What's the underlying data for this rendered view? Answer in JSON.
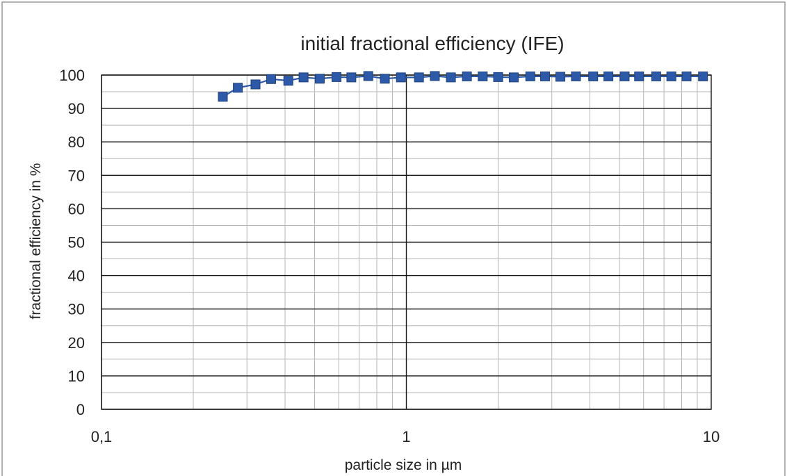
{
  "chart_data": {
    "type": "scatter",
    "title": "initial fractional efficiency (IFE)",
    "xlabel": "particle size in µm",
    "ylabel": "fractional efficiency in %",
    "x_scale": "log",
    "xlim": [
      0.1,
      10
    ],
    "ylim": [
      0,
      100
    ],
    "x_tick_labels": [
      "0,1",
      "1",
      "10"
    ],
    "y_tick_labels": [
      "0",
      "10",
      "20",
      "30",
      "40",
      "50",
      "60",
      "70",
      "80",
      "90",
      "100"
    ],
    "grid": true,
    "legend": "none",
    "series": [
      {
        "line": true,
        "marker": "square",
        "color": "#2d5aa8",
        "edge_color": "#1f3f7a",
        "x": [
          0.25,
          0.28,
          0.32,
          0.36,
          0.41,
          0.46,
          0.52,
          0.59,
          0.66,
          0.75,
          0.85,
          0.96,
          1.1,
          1.24,
          1.4,
          1.58,
          1.78,
          2.0,
          2.25,
          2.55,
          2.85,
          3.2,
          3.6,
          4.1,
          4.6,
          5.2,
          5.8,
          6.6,
          7.4,
          8.3,
          9.4
        ],
        "y": [
          93.5,
          96.2,
          97.2,
          98.8,
          98.3,
          99.3,
          98.9,
          99.4,
          99.3,
          99.7,
          98.9,
          99.3,
          99.3,
          99.7,
          99.3,
          99.6,
          99.6,
          99.4,
          99.3,
          99.6,
          99.6,
          99.5,
          99.6,
          99.6,
          99.6,
          99.6,
          99.6,
          99.6,
          99.6,
          99.6,
          99.6
        ]
      }
    ]
  }
}
